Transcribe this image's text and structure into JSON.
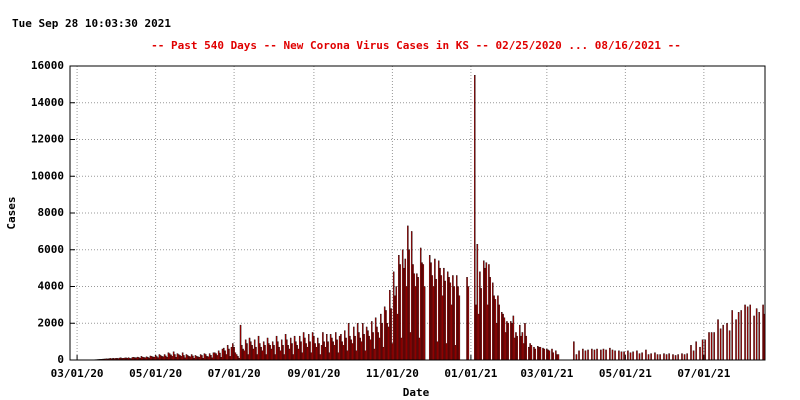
{
  "header": {
    "timestamp": "Tue Sep 28 10:03:30 2021"
  },
  "chart_data": {
    "type": "bar",
    "title": "--  Past 540 Days  --  New Corona Virus Cases in KS  -- 02/25/2020 ... 08/16/2021  --",
    "x_label": "Date",
    "y_label": "Cases",
    "color": "#b00000",
    "grid": true,
    "ylim": [
      0,
      16000
    ],
    "yticks": [
      0,
      2000,
      4000,
      6000,
      8000,
      10000,
      12000,
      14000,
      16000
    ],
    "categories": [
      null,
      null,
      null,
      null,
      null,
      "03/01/20",
      null,
      null,
      null,
      null,
      null,
      null,
      null,
      null,
      null,
      null,
      null,
      null,
      null,
      null,
      null,
      null,
      null,
      null,
      null,
      null,
      null,
      null,
      null,
      null,
      null,
      null,
      null,
      null,
      null,
      null,
      null,
      null,
      null,
      null,
      null,
      null,
      null,
      null,
      null,
      null,
      null,
      null,
      null,
      null,
      null,
      null,
      null,
      null,
      null,
      null,
      null,
      null,
      null,
      null,
      null,
      null,
      null,
      null,
      null,
      null,
      "05/01/20",
      null,
      null,
      null,
      null,
      null,
      null,
      null,
      null,
      null,
      null,
      null,
      null,
      null,
      null,
      null,
      null,
      null,
      null,
      null,
      null,
      null,
      null,
      null,
      null,
      null,
      null,
      null,
      null,
      null,
      null,
      null,
      null,
      null,
      null,
      null,
      null,
      null,
      null,
      null,
      null,
      null,
      null,
      null,
      null,
      null,
      null,
      null,
      null,
      null,
      null,
      null,
      null,
      null,
      null,
      null,
      null,
      null,
      null,
      null,
      null,
      "07/01/20",
      null,
      null,
      null,
      null,
      null,
      null,
      null,
      null,
      null,
      null,
      null,
      null,
      null,
      null,
      null,
      null,
      null,
      null,
      null,
      null,
      null,
      null,
      null,
      null,
      null,
      null,
      null,
      null,
      null,
      null,
      null,
      null,
      null,
      null,
      null,
      null,
      null,
      null,
      null,
      null,
      null,
      null,
      null,
      null,
      null,
      null,
      null,
      null,
      null,
      null,
      null,
      null,
      null,
      null,
      null,
      null,
      null,
      null,
      null,
      null,
      null,
      "09/01/20",
      null,
      null,
      null,
      null,
      null,
      null,
      null,
      null,
      null,
      null,
      null,
      null,
      null,
      null,
      null,
      null,
      null,
      null,
      null,
      null,
      null,
      null,
      null,
      null,
      null,
      null,
      null,
      null,
      null,
      null,
      null,
      null,
      null,
      null,
      null,
      null,
      null,
      null,
      null,
      null,
      null,
      null,
      null,
      null,
      null,
      null,
      null,
      null,
      null,
      null,
      null,
      null,
      null,
      null,
      null,
      null,
      null,
      null,
      null,
      null,
      "11/01/20",
      null,
      null,
      null,
      null,
      null,
      null,
      null,
      null,
      null,
      null,
      null,
      null,
      null,
      null,
      null,
      null,
      null,
      null,
      null,
      null,
      null,
      null,
      null,
      null,
      null,
      null,
      null,
      null,
      null,
      null,
      null,
      null,
      null,
      null,
      null,
      null,
      null,
      null,
      null,
      null,
      null,
      null,
      null,
      null,
      null,
      null,
      null,
      null,
      null,
      null,
      null,
      null,
      null,
      null,
      null,
      null,
      null,
      null,
      null,
      null,
      "01/01/21",
      null,
      null,
      null,
      null,
      null,
      null,
      null,
      null,
      null,
      null,
      null,
      null,
      null,
      null,
      null,
      null,
      null,
      null,
      null,
      null,
      null,
      null,
      null,
      null,
      null,
      null,
      null,
      null,
      null,
      null,
      null,
      null,
      null,
      null,
      null,
      null,
      null,
      null,
      null,
      null,
      null,
      null,
      null,
      null,
      null,
      null,
      null,
      null,
      null,
      null,
      null,
      null,
      null,
      null,
      null,
      null,
      null,
      null,
      "03/01/21",
      null,
      null,
      null,
      null,
      null,
      null,
      null,
      null,
      null,
      null,
      null,
      null,
      null,
      null,
      null,
      null,
      null,
      null,
      null,
      null,
      null,
      null,
      null,
      null,
      null,
      null,
      null,
      null,
      null,
      null,
      null,
      null,
      null,
      null,
      null,
      null,
      null,
      null,
      null,
      null,
      null,
      null,
      null,
      null,
      null,
      null,
      null,
      null,
      null,
      null,
      null,
      null,
      null,
      null,
      null,
      null,
      null,
      null,
      null,
      null,
      "05/01/21",
      null,
      null,
      null,
      null,
      null,
      null,
      null,
      null,
      null,
      null,
      null,
      null,
      null,
      null,
      null,
      null,
      null,
      null,
      null,
      null,
      null,
      null,
      null,
      null,
      null,
      null,
      null,
      null,
      null,
      null,
      null,
      null,
      null,
      null,
      null,
      null,
      null,
      null,
      null,
      null,
      null,
      null,
      null,
      null,
      null,
      null,
      null,
      null,
      null,
      null,
      null,
      null,
      null,
      null,
      null,
      null,
      null,
      null,
      null,
      null,
      "07/01/21",
      null,
      null,
      null,
      null,
      null,
      null,
      null,
      null,
      null,
      null,
      null,
      null,
      null,
      null,
      null,
      null,
      null,
      null,
      null,
      null,
      null,
      null,
      null,
      null,
      null,
      null,
      null,
      null,
      null,
      null,
      null,
      null,
      null,
      null,
      null,
      null,
      null,
      null,
      null,
      null,
      null,
      null,
      null,
      null,
      null,
      null,
      null
    ],
    "values": [
      0,
      0,
      0,
      0,
      0,
      0,
      0,
      0,
      0,
      1,
      0,
      0,
      2,
      3,
      5,
      8,
      6,
      10,
      15,
      20,
      25,
      30,
      35,
      40,
      45,
      50,
      55,
      60,
      70,
      60,
      80,
      90,
      70,
      100,
      80,
      90,
      100,
      80,
      110,
      120,
      90,
      100,
      110,
      120,
      100,
      130,
      90,
      80,
      140,
      150,
      130,
      120,
      160,
      140,
      100,
      200,
      160,
      140,
      120,
      180,
      150,
      110,
      220,
      200,
      170,
      150,
      250,
      190,
      130,
      300,
      250,
      200,
      180,
      300,
      220,
      150,
      400,
      350,
      280,
      200,
      450,
      300,
      150,
      350,
      300,
      250,
      200,
      400,
      250,
      120,
      300,
      250,
      200,
      180,
      300,
      220,
      100,
      250,
      200,
      180,
      150,
      300,
      250,
      100,
      350,
      300,
      200,
      180,
      350,
      260,
      120,
      400,
      400,
      350,
      250,
      500,
      380,
      150,
      600,
      650,
      500,
      300,
      800,
      600,
      200,
      700,
      900,
      700,
      400,
      300,
      200,
      100,
      1900,
      800,
      600,
      500,
      1100,
      900,
      300,
      1200,
      1000,
      800,
      600,
      1100,
      700,
      300,
      1300,
      900,
      700,
      500,
      1000,
      800,
      300,
      1200,
      900,
      800,
      600,
      1000,
      800,
      300,
      1300,
      1000,
      700,
      500,
      1100,
      800,
      300,
      1400,
      1100,
      800,
      600,
      1200,
      900,
      300,
      1300,
      1000,
      800,
      600,
      1300,
      1000,
      400,
      1500,
      1200,
      900,
      700,
      1400,
      1000,
      400,
      1500,
      1300,
      900,
      700,
      1200,
      900,
      300,
      800,
      1500,
      1000,
      700,
      1400,
      1000,
      400,
      1400,
      1200,
      1000,
      800,
      1500,
      1100,
      400,
      1300,
      1400,
      1000,
      800,
      1600,
      1200,
      500,
      2000,
      1300,
      1100,
      900,
      1800,
      1300,
      500,
      2000,
      1500,
      1200,
      1000,
      2000,
      1400,
      500,
      1800,
      1600,
      1300,
      1100,
      2100,
      1500,
      600,
      2300,
      1800,
      1500,
      1200,
      2500,
      2000,
      700,
      2900,
      2700,
      2000,
      1800,
      3800,
      2800,
      900,
      4800,
      3500,
      4000,
      2500,
      5700,
      5200,
      1200,
      6000,
      5000,
      5500,
      4000,
      7300,
      6000,
      1500,
      7000,
      5200,
      4700,
      4000,
      4700,
      4500,
      1200,
      6100,
      5300,
      5200,
      4000,
      0,
      0,
      0,
      5700,
      5300,
      4600,
      4000,
      5500,
      4400,
      1000,
      5400,
      5000,
      4600,
      3500,
      5000,
      4300,
      900,
      4800,
      4500,
      4200,
      3000,
      4600,
      4000,
      800,
      4600,
      4000,
      3500,
      0,
      0,
      0,
      0,
      0,
      4500,
      4000,
      0,
      0,
      0,
      0,
      15500,
      3000,
      6300,
      2500,
      4800,
      3900,
      0,
      5400,
      5000,
      5300,
      3000,
      5200,
      4500,
      0,
      4200,
      3500,
      3300,
      2000,
      3500,
      3000,
      0,
      2600,
      2500,
      2300,
      1500,
      2100,
      2000,
      0,
      2100,
      2000,
      2400,
      1200,
      1500,
      1300,
      0,
      1900,
      1300,
      1500,
      900,
      2000,
      1300,
      0,
      700,
      900,
      800,
      0,
      700,
      600,
      0,
      750,
      700,
      700,
      0,
      650,
      600,
      0,
      600,
      550,
      500,
      0,
      600,
      400,
      0,
      500,
      300,
      300,
      0,
      0,
      0,
      0,
      0,
      0,
      0,
      0,
      0,
      0,
      0,
      1000,
      0,
      300,
      0,
      500,
      0,
      0,
      600,
      0,
      500,
      0,
      550,
      0,
      0,
      600,
      0,
      550,
      0,
      600,
      0,
      0,
      550,
      0,
      600,
      0,
      550,
      0,
      0,
      650,
      0,
      550,
      0,
      500,
      0,
      0,
      500,
      0,
      450,
      0,
      450,
      0,
      0,
      500,
      0,
      400,
      0,
      450,
      0,
      0,
      500,
      0,
      350,
      0,
      400,
      0,
      0,
      550,
      0,
      300,
      0,
      350,
      0,
      0,
      400,
      0,
      300,
      0,
      300,
      0,
      0,
      350,
      0,
      300,
      0,
      350,
      0,
      0,
      300,
      0,
      250,
      0,
      300,
      0,
      0,
      350,
      0,
      300,
      0,
      350,
      0,
      0,
      800,
      0,
      500,
      0,
      1000,
      0,
      0,
      700,
      0,
      1100,
      0,
      1100,
      0,
      0,
      1500,
      0,
      1500,
      0,
      1500,
      0,
      0,
      2200,
      0,
      1700,
      0,
      1900,
      0,
      0,
      2000,
      0,
      1600,
      0,
      2700,
      0,
      0,
      2200,
      0,
      2600,
      0,
      2700,
      0,
      0,
      3000,
      0,
      2900,
      0,
      3000,
      0,
      0,
      2400,
      0,
      2800,
      0,
      2600,
      0,
      0,
      3000,
      2500
    ]
  }
}
